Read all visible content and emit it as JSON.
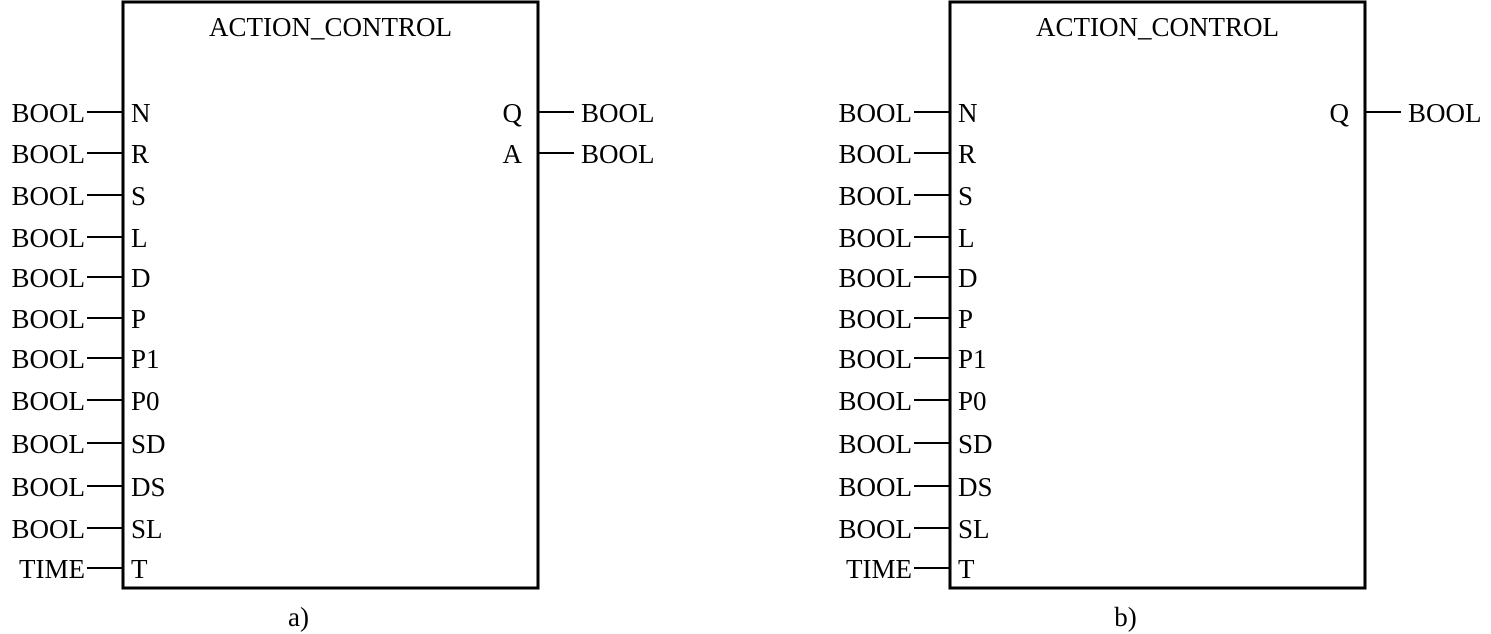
{
  "blocks": [
    {
      "id": "a",
      "title": "ACTION_CONTROL",
      "caption": "a)",
      "inputs": [
        {
          "type": "BOOL",
          "name": "N"
        },
        {
          "type": "BOOL",
          "name": "R"
        },
        {
          "type": "BOOL",
          "name": "S"
        },
        {
          "type": "BOOL",
          "name": "L"
        },
        {
          "type": "BOOL",
          "name": "D"
        },
        {
          "type": "BOOL",
          "name": "P"
        },
        {
          "type": "BOOL",
          "name": "P1"
        },
        {
          "type": "BOOL",
          "name": "P0"
        },
        {
          "type": "BOOL",
          "name": "SD"
        },
        {
          "type": "BOOL",
          "name": "DS"
        },
        {
          "type": "BOOL",
          "name": "SL"
        },
        {
          "type": "TIME",
          "name": "T"
        }
      ],
      "outputs": [
        {
          "name": "Q",
          "type": "BOOL"
        },
        {
          "name": "A",
          "type": "BOOL"
        }
      ]
    },
    {
      "id": "b",
      "title": "ACTION_CONTROL",
      "caption": "b)",
      "inputs": [
        {
          "type": "BOOL",
          "name": "N"
        },
        {
          "type": "BOOL",
          "name": "R"
        },
        {
          "type": "BOOL",
          "name": "S"
        },
        {
          "type": "BOOL",
          "name": "L"
        },
        {
          "type": "BOOL",
          "name": "D"
        },
        {
          "type": "BOOL",
          "name": "P"
        },
        {
          "type": "BOOL",
          "name": "P1"
        },
        {
          "type": "BOOL",
          "name": "P0"
        },
        {
          "type": "BOOL",
          "name": "SD"
        },
        {
          "type": "BOOL",
          "name": "DS"
        },
        {
          "type": "BOOL",
          "name": "SL"
        },
        {
          "type": "TIME",
          "name": "T"
        }
      ],
      "outputs": [
        {
          "name": "Q",
          "type": "BOOL"
        }
      ]
    }
  ]
}
